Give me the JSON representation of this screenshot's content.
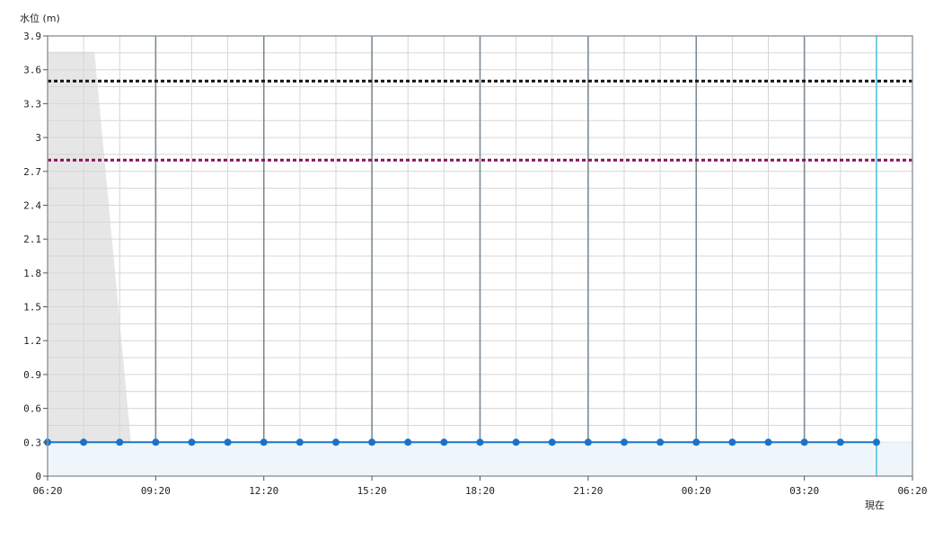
{
  "chart_data": {
    "type": "line",
    "ylabel": "水位 (m)",
    "ylim": [
      0,
      3.9
    ],
    "yticks": [
      "0",
      "0.3",
      "0.6",
      "0.9",
      "1.2",
      "1.5",
      "1.8",
      "2.1",
      "2.4",
      "2.7",
      "3",
      "3.3",
      "3.6",
      "3.9"
    ],
    "xlim_hours": [
      0,
      24
    ],
    "xticks": [
      "06:20",
      "09:20",
      "12:20",
      "15:20",
      "18:20",
      "21:20",
      "00:20",
      "03:20",
      "06:20"
    ],
    "now_label": "現在",
    "now_hours": 23,
    "series": [
      {
        "color": "#1a73c8",
        "x_hours": [
          0,
          1,
          2,
          3,
          4,
          5,
          6,
          7,
          8,
          9,
          10,
          11,
          12,
          13,
          14,
          15,
          16,
          17,
          18,
          19,
          20,
          21,
          22,
          23
        ],
        "values": [
          0.3,
          0.3,
          0.3,
          0.3,
          0.3,
          0.3,
          0.3,
          0.3,
          0.3,
          0.3,
          0.3,
          0.3,
          0.3,
          0.3,
          0.3,
          0.3,
          0.3,
          0.3,
          0.3,
          0.3,
          0.3,
          0.3,
          0.3,
          0.3
        ]
      }
    ],
    "thresholds": [
      {
        "value": 3.5,
        "color": "#111111"
      },
      {
        "value": 2.8,
        "color": "#8a0f5a"
      }
    ],
    "shaded_region": {
      "color": "#e6e6e6",
      "points": [
        [
          0,
          3.76
        ],
        [
          1.3,
          3.76
        ],
        [
          2.4,
          0
        ]
      ]
    },
    "colors": {
      "grid_minor": "#d6d6d6",
      "grid_major": "#7d8a94",
      "now_line": "#4ec3e0",
      "fill_under": "#eef6fc"
    }
  }
}
